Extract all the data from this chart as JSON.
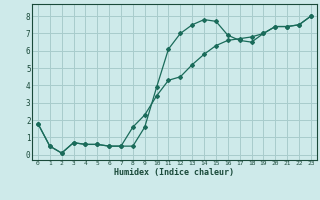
{
  "title": "",
  "xlabel": "Humidex (Indice chaleur)",
  "ylabel": "",
  "bg_color": "#ceeaea",
  "grid_color": "#a8cccc",
  "line_color": "#1a6b5a",
  "xlim": [
    -0.5,
    23.5
  ],
  "ylim": [
    -0.3,
    8.7
  ],
  "xticks": [
    0,
    1,
    2,
    3,
    4,
    5,
    6,
    7,
    8,
    9,
    10,
    11,
    12,
    13,
    14,
    15,
    16,
    17,
    18,
    19,
    20,
    21,
    22,
    23
  ],
  "yticks": [
    0,
    1,
    2,
    3,
    4,
    5,
    6,
    7,
    8
  ],
  "line1_x": [
    0,
    1,
    2,
    3,
    4,
    5,
    6,
    7,
    8,
    9,
    10,
    11,
    12,
    13,
    14,
    15,
    16,
    17,
    18,
    19,
    20,
    21,
    22,
    23
  ],
  "line1_y": [
    1.8,
    0.5,
    0.1,
    0.7,
    0.6,
    0.6,
    0.5,
    0.5,
    0.5,
    1.6,
    3.9,
    6.1,
    7.0,
    7.5,
    7.8,
    7.7,
    6.9,
    6.6,
    6.5,
    7.0,
    7.4,
    7.4,
    7.5,
    8.0
  ],
  "line2_x": [
    0,
    1,
    2,
    3,
    4,
    5,
    6,
    7,
    8,
    9,
    10,
    11,
    12,
    13,
    14,
    15,
    16,
    17,
    18,
    19,
    20,
    21,
    22,
    23
  ],
  "line2_y": [
    1.8,
    0.5,
    0.1,
    0.7,
    0.6,
    0.6,
    0.5,
    0.5,
    1.6,
    2.3,
    3.4,
    4.3,
    4.5,
    5.2,
    5.8,
    6.3,
    6.6,
    6.7,
    6.8,
    7.0,
    7.4,
    7.4,
    7.5,
    8.0
  ]
}
